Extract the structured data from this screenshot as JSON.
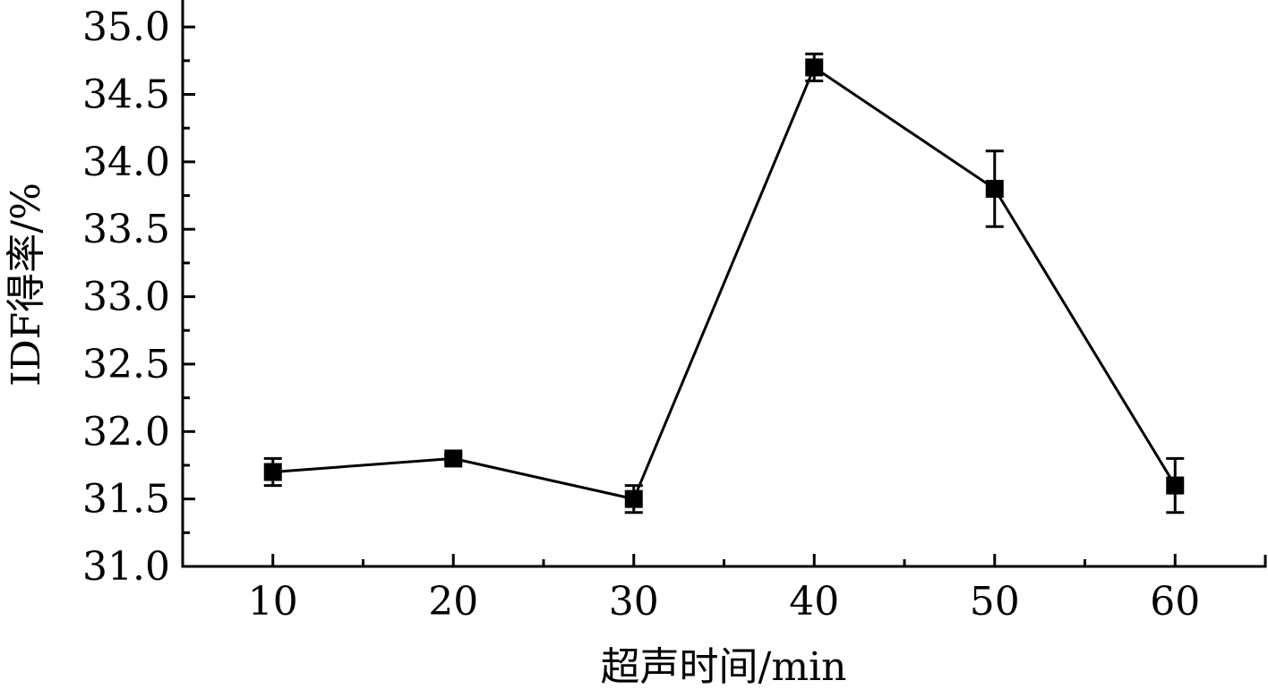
{
  "chart_data": {
    "type": "line",
    "title": "",
    "xlabel": "超声时间/min",
    "ylabel": "IDF得率/%",
    "xlim": [
      5,
      65
    ],
    "ylim": [
      31.0,
      35.2
    ],
    "x_ticks": [
      10,
      20,
      30,
      40,
      50,
      60
    ],
    "x_tick_labels": [
      "10",
      "20",
      "30",
      "40",
      "50",
      "60"
    ],
    "y_ticks": [
      31.0,
      31.5,
      32.0,
      32.5,
      33.0,
      33.5,
      34.0,
      34.5,
      35.0
    ],
    "y_tick_labels": [
      "31.0",
      "31.5",
      "32.0",
      "32.5",
      "33.0",
      "33.5",
      "34.0",
      "34.5",
      "35.0"
    ],
    "grid": false,
    "legend": "none",
    "marker": "square",
    "series": [
      {
        "x": [
          10,
          20,
          30,
          40,
          50,
          60
        ],
        "values": [
          31.7,
          31.8,
          31.5,
          34.7,
          33.8,
          31.6
        ],
        "error": [
          0.1,
          0.03,
          0.1,
          0.1,
          0.28,
          0.2
        ],
        "color": "#000000"
      }
    ]
  }
}
